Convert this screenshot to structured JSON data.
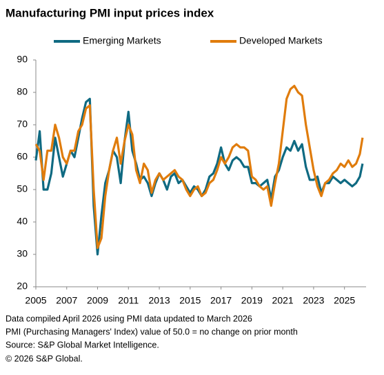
{
  "chart_data": {
    "type": "line",
    "title": "Manufacturing PMI input prices index",
    "notes": [
      "Data compiled April 2026 using PMI data updated to March 2026",
      "PMI (Purchasing Managers' Index) value of 50.0 = no change on prior month",
      "Source: S&P Global Market Intelligence.",
      "© 2026 S&P Global."
    ],
    "x": [
      2005,
      2005.25,
      2005.5,
      2005.75,
      2006,
      2006.25,
      2006.5,
      2006.75,
      2007,
      2007.25,
      2007.5,
      2007.75,
      2008,
      2008.25,
      2008.5,
      2008.75,
      2009,
      2009.25,
      2009.5,
      2009.75,
      2010,
      2010.25,
      2010.5,
      2010.75,
      2011,
      2011.25,
      2011.5,
      2011.75,
      2012,
      2012.25,
      2012.5,
      2012.75,
      2013,
      2013.25,
      2013.5,
      2013.75,
      2014,
      2014.25,
      2014.5,
      2014.75,
      2015,
      2015.25,
      2015.5,
      2015.75,
      2016,
      2016.25,
      2016.5,
      2016.75,
      2017,
      2017.25,
      2017.5,
      2017.75,
      2018,
      2018.25,
      2018.5,
      2018.75,
      2019,
      2019.25,
      2019.5,
      2019.75,
      2020,
      2020.25,
      2020.5,
      2020.75,
      2021,
      2021.25,
      2021.5,
      2021.75,
      2022,
      2022.25,
      2022.5,
      2022.75,
      2023,
      2023.25,
      2023.5,
      2023.75,
      2024,
      2024.25,
      2024.5,
      2024.75,
      2025,
      2025.25,
      2025.5,
      2025.75,
      2026,
      2026.17
    ],
    "series": [
      {
        "name": "Emerging Markets",
        "color": "#0f6a82",
        "values": [
          59,
          68,
          50,
          50,
          55,
          66,
          60,
          54,
          58,
          62,
          60,
          66,
          72,
          77,
          78,
          45,
          30,
          42,
          52,
          56,
          62,
          60,
          52,
          65,
          74,
          62,
          58,
          53,
          54,
          52,
          48,
          52,
          55,
          53,
          50,
          54,
          55,
          52,
          53,
          51,
          49,
          51,
          50,
          48,
          50,
          54,
          55,
          58,
          63,
          58,
          56,
          59,
          60,
          59,
          57,
          57,
          52,
          52,
          51,
          52,
          53,
          47,
          54,
          56,
          60,
          63,
          62,
          65,
          62,
          64,
          57,
          53,
          53,
          54,
          49,
          52,
          52,
          54,
          53,
          52,
          53,
          52,
          51,
          52,
          54,
          58
        ]
      },
      {
        "name": "Developed Markets",
        "color": "#e07c0c",
        "values": [
          64,
          62,
          53,
          62,
          62,
          70,
          66,
          60,
          58,
          62,
          62,
          68,
          70,
          75,
          76,
          50,
          32,
          35,
          48,
          56,
          62,
          66,
          58,
          65,
          70,
          67,
          56,
          52,
          58,
          56,
          49,
          53,
          55,
          53,
          54,
          55,
          56,
          54,
          53,
          50,
          48,
          50,
          51,
          48,
          49,
          52,
          53,
          56,
          60,
          58,
          60,
          63,
          64,
          63,
          63,
          62,
          54,
          53,
          51,
          50,
          51,
          45,
          52,
          58,
          68,
          78,
          81,
          82,
          80,
          79,
          70,
          63,
          56,
          51,
          48,
          52,
          53,
          55,
          56,
          58,
          57,
          59,
          57,
          58,
          61,
          66
        ]
      }
    ],
    "xlim": [
      2005,
      2026.4
    ],
    "xticks": [
      2005,
      2007,
      2009,
      2011,
      2013,
      2015,
      2017,
      2019,
      2021,
      2023,
      2025
    ],
    "ylim": [
      20,
      90
    ],
    "yticks": [
      20,
      30,
      40,
      50,
      60,
      70,
      80,
      90
    ]
  }
}
